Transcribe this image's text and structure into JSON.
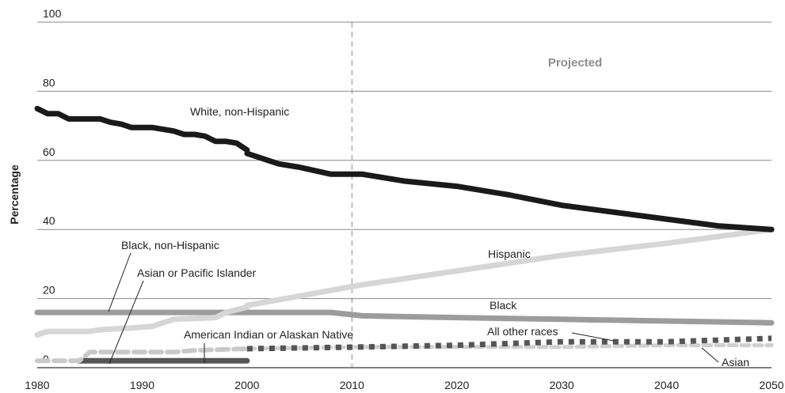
{
  "chart_data": {
    "type": "line",
    "title": "",
    "xlabel": "",
    "ylabel": "Percentage",
    "xlim": [
      1980,
      2050
    ],
    "ylim": [
      0,
      100
    ],
    "x_ticks": [
      "1980",
      "1990",
      "2000",
      "2010",
      "2020",
      "2030",
      "2040",
      "2050"
    ],
    "y_ticks": [
      "0",
      "20",
      "40",
      "60",
      "80",
      "100"
    ],
    "grid": "horizontal",
    "projection_start": 2010,
    "projection_label": "Projected",
    "series": [
      {
        "name": "White, non-Hispanic",
        "color": "#1a1a1a",
        "style": "solid-thick",
        "segments": [
          [
            [
              1980,
              75
            ],
            [
              1981,
              73.5
            ],
            [
              1982,
              73.5
            ],
            [
              1983,
              72
            ],
            [
              1985,
              72
            ],
            [
              1986,
              72
            ],
            [
              1987,
              71
            ],
            [
              1988,
              70.5
            ],
            [
              1989,
              69.5
            ],
            [
              1991,
              69.5
            ],
            [
              1993,
              68.5
            ],
            [
              1994,
              67.5
            ],
            [
              1995,
              67.5
            ],
            [
              1996,
              67
            ],
            [
              1997,
              65.5
            ],
            [
              1998,
              65.5
            ],
            [
              1999,
              65
            ],
            [
              2000,
              63
            ]
          ],
          [
            [
              2000,
              62
            ],
            [
              2003,
              59
            ],
            [
              2005,
              58
            ],
            [
              2008,
              56
            ],
            [
              2011,
              56
            ],
            [
              2015,
              54
            ],
            [
              2020,
              52.5
            ],
            [
              2025,
              50
            ],
            [
              2030,
              47
            ],
            [
              2035,
              45
            ],
            [
              2040,
              43
            ],
            [
              2045,
              41
            ],
            [
              2050,
              40
            ]
          ]
        ]
      },
      {
        "name": "Hispanic",
        "color": "#d6d6d6",
        "style": "solid-thick",
        "segments": [
          [
            [
              1980,
              9.5
            ],
            [
              1981,
              10.5
            ],
            [
              1985,
              10.5
            ],
            [
              1986,
              11
            ],
            [
              1989,
              11.5
            ],
            [
              1991,
              12
            ],
            [
              1992,
              13
            ],
            [
              1993,
              14
            ],
            [
              1997,
              14.5
            ],
            [
              1998,
              16
            ],
            [
              2000,
              17.5
            ]
          ],
          [
            [
              2000,
              18
            ],
            [
              2011,
              24
            ],
            [
              2020,
              28
            ],
            [
              2030,
              32.5
            ],
            [
              2040,
              36
            ],
            [
              2050,
              40
            ]
          ]
        ]
      },
      {
        "name": "Black, non-Hispanic",
        "color": "#9c9c9c",
        "style": "solid-thick",
        "segments": [
          [
            [
              1980,
              16
            ],
            [
              2000,
              16
            ]
          ]
        ]
      },
      {
        "name": "Black",
        "color": "#9c9c9c",
        "style": "solid-thick",
        "segments": [
          [
            [
              2000,
              16
            ],
            [
              2008,
              16
            ],
            [
              2011,
              15
            ],
            [
              2020,
              14.5
            ],
            [
              2030,
              14
            ],
            [
              2040,
              13.5
            ],
            [
              2050,
              13
            ]
          ]
        ]
      },
      {
        "name": "Asian or Pacific Islander",
        "color": "#c9c9c9",
        "style": "dashed-thick",
        "segments": [
          [
            [
              1980,
              2
            ],
            [
              1984,
              2
            ],
            [
              1985,
              4.5
            ],
            [
              1990,
              4.5
            ],
            [
              1993,
              4.5
            ],
            [
              1995,
              5
            ],
            [
              2000,
              5.5
            ]
          ]
        ]
      },
      {
        "name": "American Indian or Alaskan Native",
        "color": "#555555",
        "style": "solid-thick",
        "segments": [
          [
            [
              1984,
              2
            ],
            [
              2000,
              2
            ]
          ]
        ]
      },
      {
        "name": "All other races",
        "color": "#555555",
        "style": "square-dotted",
        "segments": [
          [
            [
              2000,
              5.5
            ],
            [
              2011,
              6
            ],
            [
              2020,
              6.5
            ],
            [
              2030,
              7.5
            ],
            [
              2040,
              7.5
            ],
            [
              2050,
              8.5
            ]
          ]
        ]
      },
      {
        "name": "Asian",
        "color": "#cfcfcf",
        "style": "dotted-dashed",
        "segments": [
          [
            [
              2000,
              5.5
            ],
            [
              2011,
              6
            ],
            [
              2020,
              6
            ],
            [
              2030,
              6
            ],
            [
              2040,
              6.5
            ],
            [
              2050,
              6.5
            ]
          ]
        ]
      }
    ]
  },
  "annotations": {
    "white": "White, non-Hispanic",
    "black_nh": "Black, non-Hispanic",
    "asian_pi": "Asian or Pacific Islander",
    "hispanic": "Hispanic",
    "black": "Black",
    "aian": "American Indian or Alaskan Native",
    "other": "All other races",
    "asian": "Asian"
  }
}
